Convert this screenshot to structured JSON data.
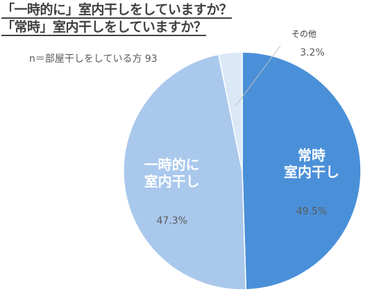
{
  "title": {
    "line1": "「一時的に」室内干しをしていますか？",
    "line2": "「常時」室内干しをしていますか？"
  },
  "sample_note": "n＝部屋干しをしている方 93",
  "chart_data": {
    "type": "pie",
    "title": "「一時的に」室内干しをしていますか？ 「常時」室内干しをしていますか？",
    "note": "n＝部屋干しをしている方 93",
    "slices": [
      {
        "name": "常時室内干し",
        "label_lines": [
          "常時",
          "室内干し"
        ],
        "value": 49.5,
        "value_label": "49.5%",
        "color": "#4a90d9"
      },
      {
        "name": "一時的に室内干し",
        "label_lines": [
          "一時的に",
          "室内干し"
        ],
        "value": 47.3,
        "value_label": "47.3%",
        "color": "#a9c8ec"
      },
      {
        "name": "その他",
        "label_lines": [
          "その他"
        ],
        "value": 3.2,
        "value_label": "3.2%",
        "color": "#dbe8f6"
      }
    ],
    "start_angle": "12 o'clock",
    "direction": "clockwise",
    "legend": "none"
  }
}
